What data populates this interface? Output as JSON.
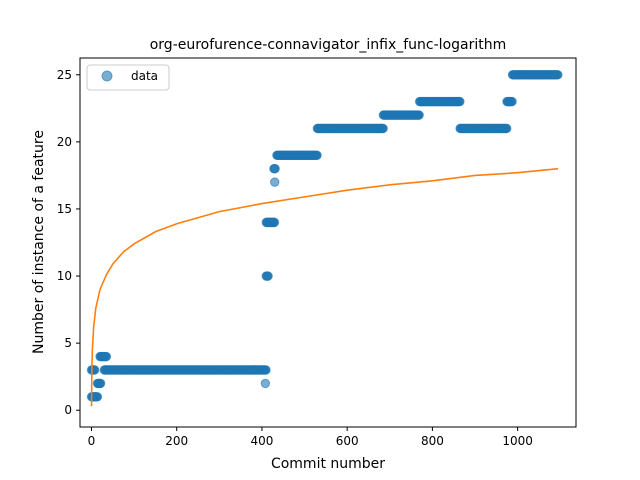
{
  "chart_data": {
    "type": "scatter",
    "title": "org-eurofurence-connavigator_infix_func-logarithm",
    "xlabel": "Commit number",
    "ylabel": "Number of instance of a feature",
    "xlim": [
      -27,
      1137
    ],
    "ylim": [
      -1.25,
      26.25
    ],
    "xticks": [
      0,
      200,
      400,
      600,
      800,
      1000
    ],
    "yticks": [
      0,
      5,
      10,
      15,
      20,
      25
    ],
    "grid": false,
    "legend": {
      "placement": "upper left",
      "entries": [
        "data"
      ]
    },
    "series": [
      {
        "name": "data",
        "kind": "scatter",
        "color": "#1f77b4",
        "segments": [
          {
            "x": [
              0,
              8
            ],
            "y": 1
          },
          {
            "x": [
              0,
              8
            ],
            "y": 3
          },
          {
            "x": [
              8,
              14
            ],
            "y": 1
          },
          {
            "x": [
              14,
              22
            ],
            "y": 2
          },
          {
            "x": [
              20,
              35
            ],
            "y": 4
          },
          {
            "x": [
              30,
              410
            ],
            "y": 3
          },
          {
            "x": [
              410,
              415
            ],
            "y": 10
          },
          {
            "x": [
              410,
              430
            ],
            "y": 14
          },
          {
            "x": [
              428,
              432
            ],
            "y": 18
          },
          {
            "x": [
              435,
              530
            ],
            "y": 19
          },
          {
            "x": [
              530,
              685
            ],
            "y": 21
          },
          {
            "x": [
              685,
              770
            ],
            "y": 22
          },
          {
            "x": [
              770,
              865
            ],
            "y": 23
          },
          {
            "x": [
              865,
              975
            ],
            "y": 21
          },
          {
            "x": [
              975,
              988
            ],
            "y": 23
          },
          {
            "x": [
              988,
              1095
            ],
            "y": 25
          }
        ],
        "points": [
          {
            "x": 408,
            "y": 2
          },
          {
            "x": 430,
            "y": 17
          }
        ]
      },
      {
        "name": "",
        "kind": "line",
        "color": "#ff7f0e",
        "curve": [
          [
            0,
            0.3
          ],
          [
            1,
            3.3
          ],
          [
            2,
            4.5
          ],
          [
            5,
            6.2
          ],
          [
            10,
            7.6
          ],
          [
            20,
            9.0
          ],
          [
            35,
            10.1
          ],
          [
            50,
            10.9
          ],
          [
            75,
            11.8
          ],
          [
            100,
            12.4
          ],
          [
            150,
            13.3
          ],
          [
            200,
            13.9
          ],
          [
            300,
            14.8
          ],
          [
            400,
            15.4
          ],
          [
            500,
            15.9
          ],
          [
            600,
            16.4
          ],
          [
            700,
            16.8
          ],
          [
            800,
            17.1
          ],
          [
            900,
            17.5
          ],
          [
            1000,
            17.7
          ],
          [
            1095,
            18.0
          ]
        ]
      }
    ]
  }
}
